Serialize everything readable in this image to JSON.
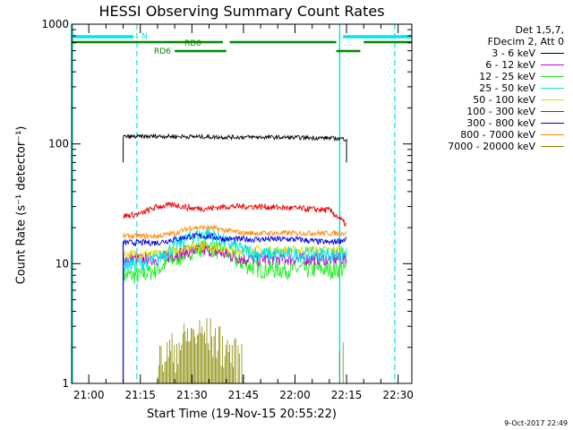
{
  "chart_data": {
    "type": "line",
    "title": "HESSI Observing Summary Count Rates",
    "xlabel": "Start Time (19-Nov-15 20:55:22)",
    "ylabel": "Count Rate (s⁻¹ detector⁻¹)",
    "footer": "9-Oct-2017 22:49",
    "y_scale": "log",
    "ylim": [
      1,
      1000
    ],
    "xlim": [
      "20:55",
      "22:34"
    ],
    "x_ticks": [
      "21:00",
      "21:15",
      "21:30",
      "21:45",
      "22:00",
      "22:15",
      "22:30"
    ],
    "y_ticks": [
      "1",
      "10",
      "100",
      "1000"
    ],
    "grid": false,
    "legend_position": "right",
    "legend_header": [
      "Det 1,5,7,",
      "FDecim 2, Att 0"
    ],
    "series": [
      {
        "name": "3 - 6 keV",
        "color": "#000000",
        "x": [
          "21:10",
          "21:15",
          "21:20",
          "21:30",
          "21:40",
          "21:50",
          "22:00",
          "22:10",
          "22:15"
        ],
        "values": [
          115,
          115,
          116,
          115,
          114,
          114,
          113,
          112,
          110
        ]
      },
      {
        "name": "6 - 12 keV",
        "color": "#cc00cc",
        "x": [
          "21:10",
          "21:15",
          "21:20",
          "21:25",
          "21:30",
          "21:35",
          "21:40",
          "21:45",
          "21:50",
          "22:00",
          "22:10",
          "22:15"
        ],
        "values": [
          11,
          11,
          11,
          12,
          13,
          13,
          12,
          11,
          11,
          11,
          11,
          11
        ]
      },
      {
        "name": "12 - 25 keV",
        "color": "#22ee22",
        "x": [
          "21:10",
          "21:15",
          "21:20",
          "21:25",
          "21:30",
          "21:35",
          "21:40",
          "21:45",
          "21:50",
          "22:00",
          "22:10",
          "22:15"
        ],
        "values": [
          8,
          8,
          9,
          11,
          13,
          14,
          12,
          10,
          9,
          9,
          9,
          9
        ]
      },
      {
        "name": "25 - 50 keV",
        "color": "#00e5e5",
        "x": [
          "21:10",
          "21:15",
          "21:20",
          "21:25",
          "21:30",
          "21:35",
          "21:40",
          "21:45",
          "21:50",
          "22:00",
          "22:10",
          "22:15"
        ],
        "values": [
          10,
          10,
          11,
          14,
          17,
          18,
          15,
          13,
          12,
          12,
          12,
          12
        ]
      },
      {
        "name": "50 - 100 keV",
        "color": "#dddd00",
        "x": [
          "21:10",
          "21:15",
          "21:20",
          "21:25",
          "21:30",
          "21:35",
          "21:40",
          "21:45",
          "21:50",
          "22:00",
          "22:10",
          "22:15"
        ],
        "values": [
          12,
          12,
          12,
          13,
          14,
          14,
          13,
          13,
          13,
          13,
          13,
          13
        ]
      },
      {
        "name": "100 - 300 keV",
        "color": "#ee0000",
        "x": [
          "21:10",
          "21:15",
          "21:20",
          "21:25",
          "21:30",
          "21:35",
          "21:40",
          "21:45",
          "21:50",
          "22:00",
          "22:10",
          "22:15"
        ],
        "values": [
          25,
          26,
          30,
          31,
          29,
          29,
          30,
          30,
          30,
          29,
          28,
          21
        ]
      },
      {
        "name": "300 - 800 keV",
        "color": "#0000dd",
        "x": [
          "21:10",
          "21:15",
          "21:20",
          "21:25",
          "21:30",
          "21:35",
          "21:40",
          "21:45",
          "21:50",
          "22:00",
          "22:10",
          "22:15"
        ],
        "values": [
          15,
          15,
          15,
          16,
          17,
          17,
          16,
          16,
          16,
          16,
          15,
          16
        ]
      },
      {
        "name": "800 - 7000 keV",
        "color": "#ff8800",
        "x": [
          "21:10",
          "21:15",
          "21:20",
          "21:25",
          "21:30",
          "21:35",
          "21:40",
          "21:45",
          "21:50",
          "22:00",
          "22:10",
          "22:15"
        ],
        "values": [
          17,
          17,
          17,
          18,
          20,
          20,
          19,
          18,
          18,
          18,
          18,
          18
        ]
      },
      {
        "name": "7000 - 20000 keV",
        "color": "#888800",
        "x": [
          "21:20",
          "21:25",
          "21:30",
          "21:35",
          "21:40",
          "21:45"
        ],
        "values": [
          1.5,
          2,
          2.6,
          2.6,
          2,
          1.5
        ]
      }
    ],
    "annotations": [
      {
        "text": "N",
        "color": "#00e5e5"
      },
      {
        "text": "RD0",
        "color": "#008800"
      },
      {
        "text": "RD6",
        "color": "#008800"
      }
    ]
  }
}
